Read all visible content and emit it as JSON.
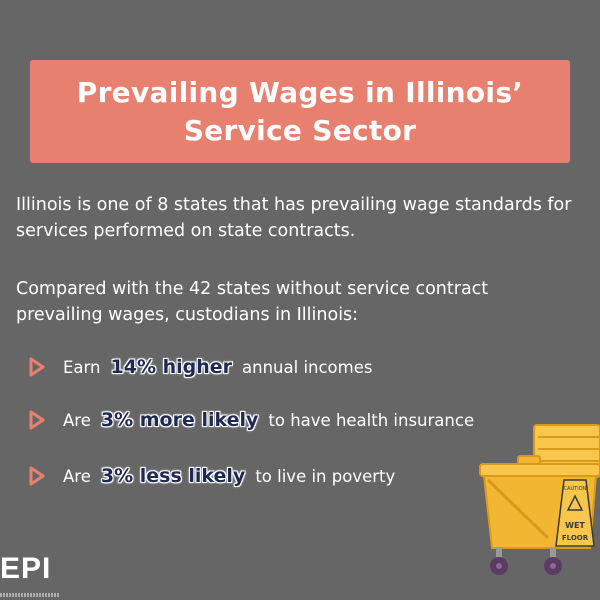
{
  "title": {
    "line1": "Prevailing Wages in Illinois’",
    "line2": "Service Sector"
  },
  "paragraphs": [
    "Illinois is one of 8 states that has prevailing wage standards for services performed on state contracts.",
    "Compared with the 42 states without service contract prevailing wages, custodians in Illinois:"
  ],
  "bullets": [
    {
      "before": "Earn",
      "highlight": "14% higher",
      "after": "annual incomes"
    },
    {
      "before": "Are",
      "highlight": "3% more likely",
      "after": "to have health insurance"
    },
    {
      "before": "Are",
      "highlight": "3% less likely",
      "after": "to live in poverty"
    }
  ],
  "illustration": {
    "caution_label": "CAUTION",
    "sign_text_1": "WET",
    "sign_text_2": "FLOOR"
  },
  "logo": {
    "text": "EPI"
  },
  "colors": {
    "background": "#666666",
    "title_box": "#e8806f",
    "arrow": "#e8806f",
    "highlight_text": "#1e2a52",
    "bucket": "#f2b632"
  },
  "icons": {
    "bullet": "triangle-arrow-icon",
    "illustration": "mop-bucket-icon"
  }
}
